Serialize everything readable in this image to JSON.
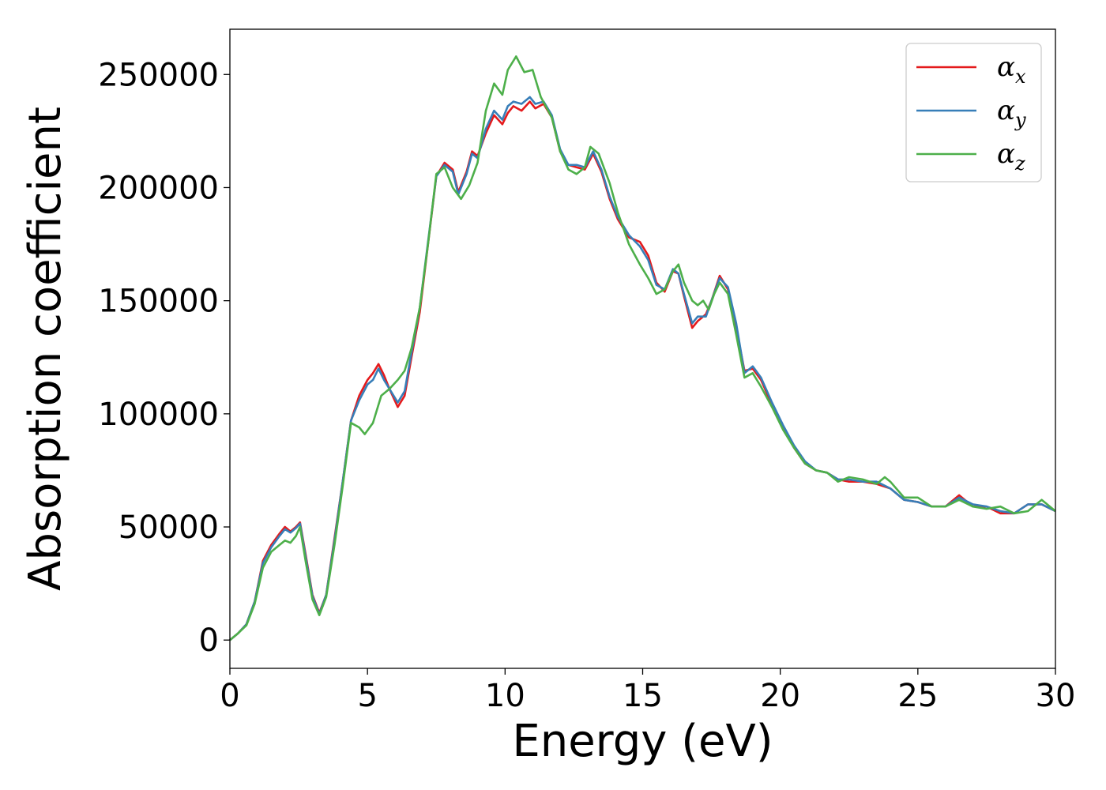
{
  "chart_data": {
    "type": "line",
    "title": "",
    "xlabel": "Energy (eV)",
    "ylabel": "Absorption coefficient",
    "xlim": [
      0,
      30
    ],
    "ylim": [
      -12500,
      270000
    ],
    "xticks": [
      0,
      5,
      10,
      15,
      20,
      25,
      30
    ],
    "yticks": [
      0,
      50000,
      100000,
      150000,
      200000,
      250000
    ],
    "grid": false,
    "legend": {
      "placement": "top-right"
    },
    "series": [
      {
        "name": "αx",
        "base": "α",
        "sub": "x",
        "color": "#e41a1c",
        "points": [
          [
            0,
            0
          ],
          [
            0.3,
            3000
          ],
          [
            0.6,
            7000
          ],
          [
            0.9,
            17000
          ],
          [
            1.2,
            35000
          ],
          [
            1.5,
            42000
          ],
          [
            1.8,
            47000
          ],
          [
            2.0,
            50000
          ],
          [
            2.2,
            48000
          ],
          [
            2.4,
            50000
          ],
          [
            2.55,
            52000
          ],
          [
            2.75,
            38000
          ],
          [
            3.0,
            20000
          ],
          [
            3.25,
            12000
          ],
          [
            3.5,
            20000
          ],
          [
            3.8,
            45000
          ],
          [
            4.1,
            70000
          ],
          [
            4.4,
            97000
          ],
          [
            4.7,
            108000
          ],
          [
            5.0,
            115000
          ],
          [
            5.2,
            118000
          ],
          [
            5.4,
            122000
          ],
          [
            5.6,
            117000
          ],
          [
            5.8,
            111000
          ],
          [
            6.1,
            103000
          ],
          [
            6.35,
            108000
          ],
          [
            6.6,
            125000
          ],
          [
            6.9,
            145000
          ],
          [
            7.2,
            175000
          ],
          [
            7.5,
            205000
          ],
          [
            7.8,
            211000
          ],
          [
            8.1,
            208000
          ],
          [
            8.3,
            198000
          ],
          [
            8.6,
            207000
          ],
          [
            8.8,
            216000
          ],
          [
            9.0,
            214000
          ],
          [
            9.3,
            224000
          ],
          [
            9.6,
            232000
          ],
          [
            9.9,
            228000
          ],
          [
            10.1,
            233000
          ],
          [
            10.3,
            236000
          ],
          [
            10.6,
            234000
          ],
          [
            10.9,
            238000
          ],
          [
            11.1,
            235000
          ],
          [
            11.4,
            237000
          ],
          [
            11.7,
            231000
          ],
          [
            12.0,
            216000
          ],
          [
            12.3,
            210000
          ],
          [
            12.6,
            209000
          ],
          [
            12.9,
            208000
          ],
          [
            13.2,
            215000
          ],
          [
            13.5,
            207000
          ],
          [
            13.8,
            195000
          ],
          [
            14.1,
            186000
          ],
          [
            14.5,
            178000
          ],
          [
            14.9,
            176000
          ],
          [
            15.2,
            170000
          ],
          [
            15.5,
            158000
          ],
          [
            15.8,
            154000
          ],
          [
            16.1,
            163000
          ],
          [
            16.3,
            162000
          ],
          [
            16.5,
            152000
          ],
          [
            16.8,
            138000
          ],
          [
            17.0,
            141000
          ],
          [
            17.3,
            144000
          ],
          [
            17.5,
            150000
          ],
          [
            17.8,
            161000
          ],
          [
            18.1,
            155000
          ],
          [
            18.4,
            138000
          ],
          [
            18.7,
            119000
          ],
          [
            19.0,
            120000
          ],
          [
            19.3,
            115000
          ],
          [
            19.7,
            104000
          ],
          [
            20.1,
            94000
          ],
          [
            20.5,
            85000
          ],
          [
            20.9,
            78000
          ],
          [
            21.3,
            75000
          ],
          [
            21.7,
            74000
          ],
          [
            22.1,
            71000
          ],
          [
            22.5,
            70000
          ],
          [
            23.0,
            70000
          ],
          [
            23.5,
            69000
          ],
          [
            24.0,
            67000
          ],
          [
            24.5,
            62000
          ],
          [
            25.0,
            61000
          ],
          [
            25.5,
            59000
          ],
          [
            26.0,
            59000
          ],
          [
            26.5,
            64000
          ],
          [
            27.0,
            59000
          ],
          [
            27.5,
            59000
          ],
          [
            28.0,
            56000
          ],
          [
            28.5,
            56000
          ],
          [
            29.0,
            60000
          ],
          [
            29.5,
            60000
          ],
          [
            30.0,
            57000
          ]
        ]
      },
      {
        "name": "αy",
        "base": "α",
        "sub": "y",
        "color": "#377eb8",
        "points": [
          [
            0,
            0
          ],
          [
            0.3,
            3000
          ],
          [
            0.6,
            7000
          ],
          [
            0.9,
            17000
          ],
          [
            1.2,
            34000
          ],
          [
            1.5,
            41000
          ],
          [
            1.8,
            46000
          ],
          [
            2.0,
            49000
          ],
          [
            2.2,
            47500
          ],
          [
            2.4,
            49500
          ],
          [
            2.55,
            51500
          ],
          [
            2.75,
            37000
          ],
          [
            3.0,
            19500
          ],
          [
            3.25,
            11500
          ],
          [
            3.5,
            20000
          ],
          [
            3.8,
            44000
          ],
          [
            4.1,
            70000
          ],
          [
            4.4,
            97000
          ],
          [
            4.7,
            106000
          ],
          [
            5.0,
            113000
          ],
          [
            5.2,
            115000
          ],
          [
            5.4,
            120000
          ],
          [
            5.6,
            115000
          ],
          [
            5.8,
            111000
          ],
          [
            6.1,
            105000
          ],
          [
            6.35,
            110000
          ],
          [
            6.6,
            127000
          ],
          [
            6.9,
            147000
          ],
          [
            7.2,
            176000
          ],
          [
            7.5,
            205000
          ],
          [
            7.8,
            210000
          ],
          [
            8.1,
            207000
          ],
          [
            8.3,
            197000
          ],
          [
            8.6,
            206000
          ],
          [
            8.8,
            215000
          ],
          [
            9.0,
            213000
          ],
          [
            9.3,
            226000
          ],
          [
            9.6,
            234000
          ],
          [
            9.9,
            230000
          ],
          [
            10.1,
            236000
          ],
          [
            10.3,
            238000
          ],
          [
            10.6,
            237000
          ],
          [
            10.9,
            240000
          ],
          [
            11.1,
            237000
          ],
          [
            11.4,
            238000
          ],
          [
            11.7,
            232000
          ],
          [
            12.0,
            217000
          ],
          [
            12.3,
            210000
          ],
          [
            12.6,
            210000
          ],
          [
            12.9,
            209000
          ],
          [
            13.2,
            216000
          ],
          [
            13.5,
            208000
          ],
          [
            13.8,
            196000
          ],
          [
            14.1,
            187000
          ],
          [
            14.5,
            179000
          ],
          [
            14.9,
            174000
          ],
          [
            15.2,
            168000
          ],
          [
            15.5,
            157000
          ],
          [
            15.8,
            155000
          ],
          [
            16.1,
            164000
          ],
          [
            16.3,
            162000
          ],
          [
            16.5,
            153000
          ],
          [
            16.8,
            140000
          ],
          [
            17.0,
            143000
          ],
          [
            17.3,
            143000
          ],
          [
            17.5,
            150000
          ],
          [
            17.8,
            160000
          ],
          [
            18.1,
            156000
          ],
          [
            18.4,
            140000
          ],
          [
            18.7,
            118000
          ],
          [
            19.0,
            121000
          ],
          [
            19.3,
            116000
          ],
          [
            19.7,
            105000
          ],
          [
            20.1,
            95000
          ],
          [
            20.5,
            86000
          ],
          [
            20.9,
            79000
          ],
          [
            21.3,
            75000
          ],
          [
            21.7,
            74000
          ],
          [
            22.1,
            71000
          ],
          [
            22.5,
            71000
          ],
          [
            23.0,
            70000
          ],
          [
            23.5,
            70000
          ],
          [
            24.0,
            67000
          ],
          [
            24.5,
            62000
          ],
          [
            25.0,
            61000
          ],
          [
            25.5,
            59000
          ],
          [
            26.0,
            59000
          ],
          [
            26.5,
            63000
          ],
          [
            27.0,
            60000
          ],
          [
            27.5,
            59000
          ],
          [
            28.0,
            57000
          ],
          [
            28.5,
            56000
          ],
          [
            29.0,
            60000
          ],
          [
            29.5,
            60000
          ],
          [
            30.0,
            57000
          ]
        ]
      },
      {
        "name": "αz",
        "base": "α",
        "sub": "z",
        "color": "#4daf4a",
        "points": [
          [
            0,
            0
          ],
          [
            0.3,
            3000
          ],
          [
            0.6,
            6500
          ],
          [
            0.9,
            16000
          ],
          [
            1.2,
            32000
          ],
          [
            1.5,
            39000
          ],
          [
            1.8,
            42000
          ],
          [
            2.0,
            44000
          ],
          [
            2.2,
            43000
          ],
          [
            2.4,
            46000
          ],
          [
            2.55,
            50000
          ],
          [
            2.75,
            35000
          ],
          [
            3.0,
            18000
          ],
          [
            3.25,
            11000
          ],
          [
            3.5,
            19000
          ],
          [
            3.8,
            42000
          ],
          [
            4.1,
            68000
          ],
          [
            4.4,
            96000
          ],
          [
            4.7,
            94000
          ],
          [
            4.9,
            91000
          ],
          [
            5.2,
            96000
          ],
          [
            5.5,
            108000
          ],
          [
            5.8,
            111000
          ],
          [
            6.1,
            115000
          ],
          [
            6.35,
            119000
          ],
          [
            6.6,
            129000
          ],
          [
            6.9,
            147000
          ],
          [
            7.2,
            175000
          ],
          [
            7.5,
            206000
          ],
          [
            7.8,
            209000
          ],
          [
            8.1,
            200000
          ],
          [
            8.4,
            195000
          ],
          [
            8.7,
            201000
          ],
          [
            9.0,
            211000
          ],
          [
            9.3,
            234000
          ],
          [
            9.6,
            246000
          ],
          [
            9.9,
            241000
          ],
          [
            10.1,
            252000
          ],
          [
            10.4,
            258000
          ],
          [
            10.7,
            251000
          ],
          [
            11.0,
            252000
          ],
          [
            11.3,
            240000
          ],
          [
            11.7,
            231000
          ],
          [
            12.0,
            216000
          ],
          [
            12.3,
            208000
          ],
          [
            12.6,
            206000
          ],
          [
            12.9,
            209000
          ],
          [
            13.1,
            218000
          ],
          [
            13.4,
            215000
          ],
          [
            13.8,
            202000
          ],
          [
            14.1,
            189000
          ],
          [
            14.5,
            175000
          ],
          [
            14.9,
            166000
          ],
          [
            15.2,
            160000
          ],
          [
            15.5,
            153000
          ],
          [
            15.8,
            155000
          ],
          [
            16.1,
            163000
          ],
          [
            16.3,
            166000
          ],
          [
            16.5,
            158000
          ],
          [
            16.8,
            150000
          ],
          [
            17.0,
            148000
          ],
          [
            17.2,
            150000
          ],
          [
            17.4,
            146000
          ],
          [
            17.6,
            153000
          ],
          [
            17.8,
            158000
          ],
          [
            18.1,
            153000
          ],
          [
            18.4,
            135000
          ],
          [
            18.7,
            116000
          ],
          [
            19.0,
            118000
          ],
          [
            19.3,
            112000
          ],
          [
            19.7,
            103000
          ],
          [
            20.1,
            93000
          ],
          [
            20.5,
            85000
          ],
          [
            20.9,
            78000
          ],
          [
            21.3,
            75000
          ],
          [
            21.7,
            74000
          ],
          [
            22.1,
            70000
          ],
          [
            22.5,
            72000
          ],
          [
            23.0,
            71000
          ],
          [
            23.5,
            69000
          ],
          [
            23.8,
            72000
          ],
          [
            24.0,
            70000
          ],
          [
            24.5,
            63000
          ],
          [
            25.0,
            63000
          ],
          [
            25.5,
            59000
          ],
          [
            26.0,
            59000
          ],
          [
            26.5,
            62000
          ],
          [
            27.0,
            59000
          ],
          [
            27.5,
            58000
          ],
          [
            28.0,
            59000
          ],
          [
            28.5,
            56000
          ],
          [
            29.0,
            57000
          ],
          [
            29.5,
            62000
          ],
          [
            30.0,
            57000
          ]
        ]
      }
    ]
  }
}
